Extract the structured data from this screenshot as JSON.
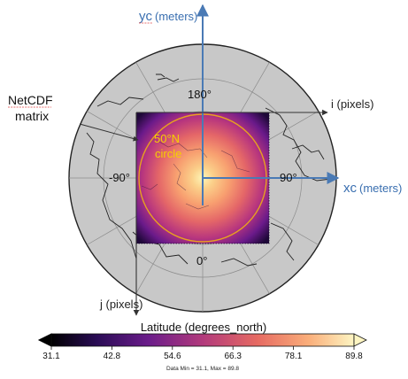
{
  "figure": {
    "yc_label": "yc",
    "yc_unit": "(meters)",
    "xc_label": "xc",
    "xc_unit": "(meters)",
    "i_label": "i (pixels)",
    "j_label": "j (pixels)",
    "netcdf_line1": "NetCDF",
    "netcdf_line2": "matrix",
    "circle_line1": "50°N",
    "circle_line2": "circle",
    "lon_top": "180°",
    "lon_left": "-90°",
    "lon_right": "90°",
    "lon_bottom": "0°"
  },
  "colorbar": {
    "title": "Latitude (degrees_north)",
    "ticks": [
      "31.1",
      "42.8",
      "54.6",
      "66.3",
      "78.1",
      "89.8"
    ],
    "footer": "Data Min = 31.1, Max = 89.8"
  },
  "colors": {
    "axis_arrow": "#4a7ab5",
    "circle": "#e8a020",
    "circle_text": "#f5d000",
    "accent_blue": "#3a6fb0",
    "globe_fill": "#c8c8c8",
    "spellcheck_underline": "#e04040"
  }
}
